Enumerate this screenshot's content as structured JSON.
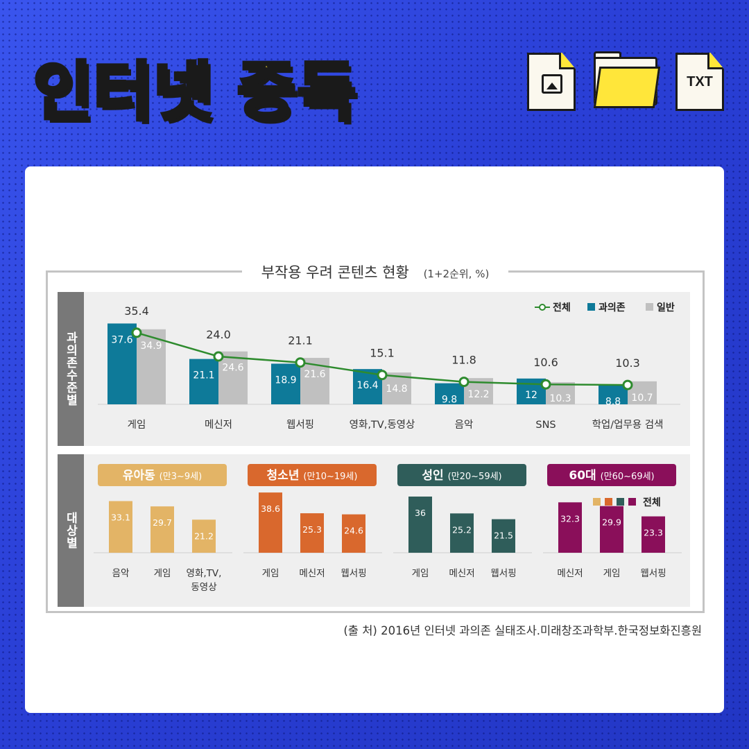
{
  "page": {
    "title": "인터넷 중독",
    "txt_icon_label": "TXT",
    "source": "(출 처) 2016년 인터넷 과의존 실태조사.미래창조과학부.한국정보화진흥원"
  },
  "colors": {
    "bg": "#2a3fd6",
    "title": "#ffe63a",
    "teal": "#0e7a99",
    "gray": "#c0c0c0",
    "line": "#2e8b2e",
    "young": "#e3b466",
    "teen": "#d9682d",
    "adult": "#2f5d5a",
    "senior": "#8a0f5a"
  },
  "chart_data": [
    {
      "type": "bar",
      "title": "부작용 우려 콘텐츠 현황",
      "subtitle": "(1+2순위, %)",
      "panel_label": "과의존수준별",
      "categories": [
        "게임",
        "메신저",
        "웹서핑",
        "영화,TV,동영상",
        "음악",
        "SNS",
        "학업/업무용 검색"
      ],
      "series": [
        {
          "name": "과의존",
          "values": [
            37.6,
            21.1,
            18.9,
            16.4,
            9.8,
            12,
            8.8
          ],
          "labels": [
            "37.6",
            "21.1",
            "18.9",
            "16.4",
            "9.8",
            "12",
            "8.8"
          ]
        },
        {
          "name": "일반",
          "values": [
            34.9,
            24.6,
            21.6,
            14.8,
            12.2,
            10.3,
            10.7
          ],
          "labels": [
            "34.9",
            "24.6",
            "21.6",
            "14.8",
            "12.2",
            "10.3",
            "10.7"
          ]
        },
        {
          "name": "전체",
          "type": "line",
          "values": [
            35.4,
            24.0,
            21.1,
            15.1,
            11.8,
            10.6,
            10.3
          ],
          "labels": [
            "35.4",
            "24.0",
            "21.1",
            "15.1",
            "11.8",
            "10.6",
            "10.3"
          ]
        }
      ],
      "legend": [
        "전체",
        "과의존",
        "일반"
      ],
      "legend_position": "top-right"
    },
    {
      "type": "bar",
      "panel_label": "대상별",
      "legend": [
        "전체"
      ],
      "legend_position": "top-right",
      "groups": [
        {
          "title": "유아동",
          "sub": "(만3~9세)",
          "color": "young",
          "categories": [
            "음악",
            "게임",
            "영화,TV,\n동영상"
          ],
          "values": [
            33.1,
            29.7,
            21.2
          ],
          "labels": [
            "33.1",
            "29.7",
            "21.2"
          ]
        },
        {
          "title": "청소년",
          "sub": "(만10~19세)",
          "color": "teen",
          "categories": [
            "게임",
            "메신저",
            "웹서핑"
          ],
          "values": [
            38.6,
            25.3,
            24.6
          ],
          "labels": [
            "38.6",
            "25.3",
            "24.6"
          ]
        },
        {
          "title": "성인",
          "sub": "(만20~59세)",
          "color": "adult",
          "categories": [
            "게임",
            "메신저",
            "웹서핑"
          ],
          "values": [
            36,
            25.2,
            21.5
          ],
          "labels": [
            "36",
            "25.2",
            "21.5"
          ]
        },
        {
          "title": "60대",
          "sub": "(만60~69세)",
          "color": "senior",
          "categories": [
            "메신저",
            "게임",
            "웹서핑"
          ],
          "values": [
            32.3,
            29.9,
            23.3
          ],
          "labels": [
            "32.3",
            "29.9",
            "23.3"
          ]
        }
      ]
    }
  ]
}
